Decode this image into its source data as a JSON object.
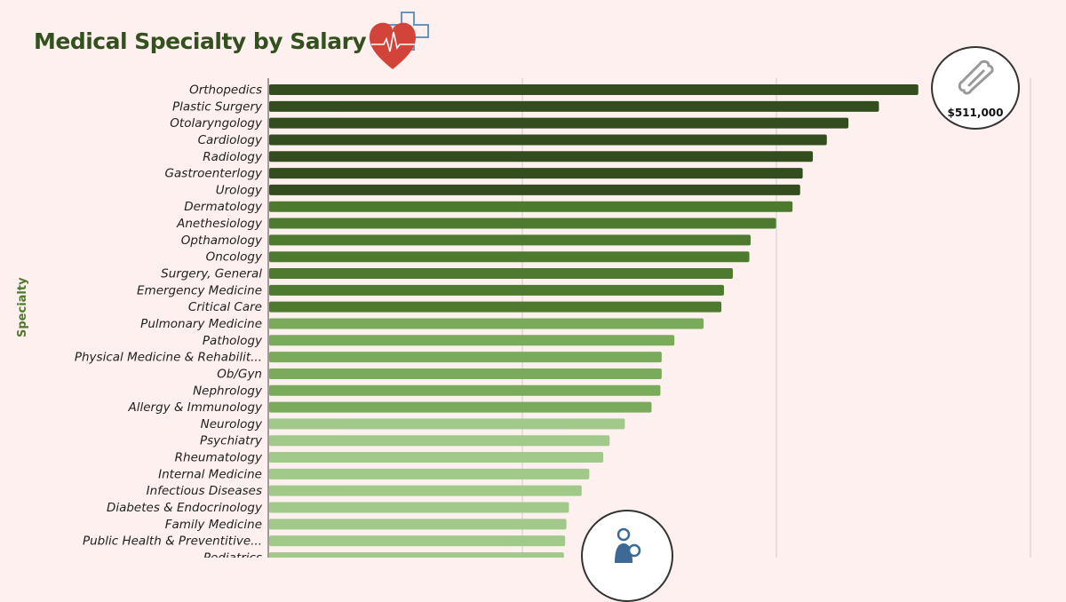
{
  "title": "Medical Specialty by Salary",
  "top_badge": {
    "value": "$511,000",
    "icon": "bone-icon"
  },
  "bottom_badge": {
    "icon": "mother-child-icon"
  },
  "header_icon": "heart-medical-cross-icon",
  "colors": {
    "background": "#fdf0ee",
    "tier1": "#344d1e",
    "tier2": "#4d7a2e",
    "tier3": "#7aab5b",
    "tier4": "#a0c98a",
    "title": "#34501f"
  },
  "chart_data": {
    "type": "bar",
    "orientation": "horizontal",
    "title": "Medical Specialty by Salary",
    "ylabel": "Specialty",
    "xlabel": "",
    "xlim": [
      0,
      600000
    ],
    "gridlines_x": [
      200000,
      400000,
      600000
    ],
    "grid": true,
    "categories": [
      "Orthopedics",
      "Plastic Surgery",
      "Otolaryngology",
      "Cardiology",
      "Radiology",
      "Gastroenterlogy",
      "Urology",
      "Dermatology",
      "Anethesiology",
      "Opthamology",
      "Oncology",
      "Surgery, General",
      "Emergency Medicine",
      "Critical Care",
      "Pulmonary Medicine",
      "Pathology",
      "Physical Medicine & Rehabilit...",
      "Ob/Gyn",
      "Nephrology",
      "Allergy & Immunology",
      "Neurology",
      "Psychiatry",
      "Rheumatology",
      "Internal Medicine",
      "Infectious Diseases",
      "Diabetes & Endocrinology",
      "Family Medicine",
      "Public Health & Preventitive...",
      "Pediatrics"
    ],
    "values": [
      511000,
      480000,
      456000,
      439000,
      428000,
      420000,
      418000,
      412000,
      399000,
      379000,
      378000,
      365000,
      358000,
      356000,
      342000,
      319000,
      309000,
      309000,
      308000,
      301000,
      280000,
      268000,
      263000,
      252000,
      246000,
      236000,
      234000,
      233000,
      232000
    ],
    "color_tiers": [
      1,
      1,
      1,
      1,
      1,
      1,
      1,
      2,
      2,
      2,
      2,
      2,
      2,
      2,
      3,
      3,
      3,
      3,
      3,
      3,
      4,
      4,
      4,
      4,
      4,
      4,
      4,
      4,
      4
    ]
  }
}
